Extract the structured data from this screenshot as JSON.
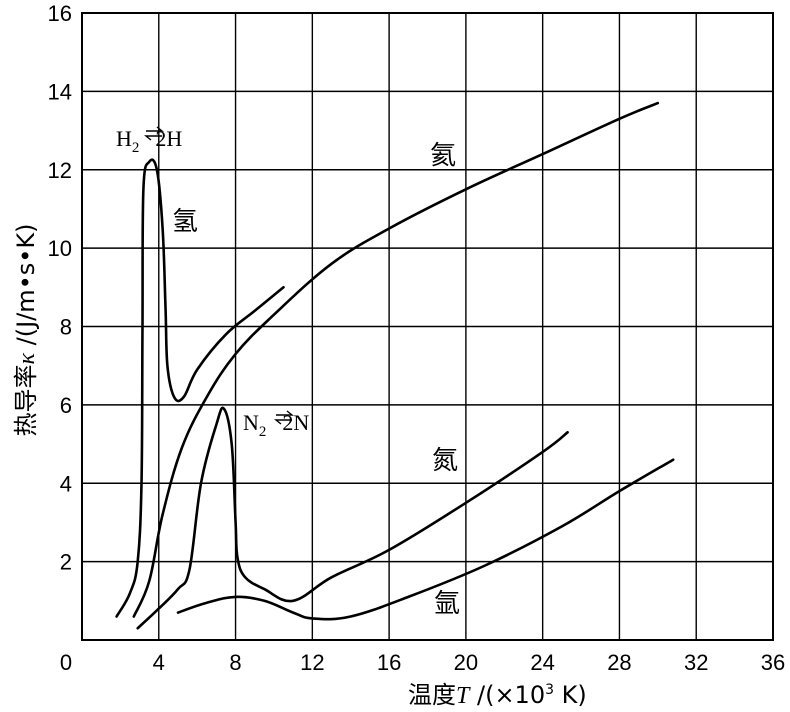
{
  "chart_data": {
    "type": "line",
    "xlabel_prefix": "温度",
    "xlabel_var": "T",
    "xlabel_unit_start": " /(×10",
    "xlabel_unit_exp": "3",
    "xlabel_unit_end": " K)",
    "ylabel_prefix": "热导率",
    "ylabel_var": "κ",
    "ylabel_unit": " /(J/m•s•K)",
    "xlim": [
      0,
      36
    ],
    "ylim": [
      0,
      16
    ],
    "x_ticks": [
      "0",
      "4",
      "8",
      "12",
      "16",
      "20",
      "24",
      "28",
      "32",
      "36"
    ],
    "y_ticks": [
      "2",
      "4",
      "6",
      "8",
      "10",
      "12",
      "14",
      "16"
    ],
    "grid": true,
    "series": [
      {
        "name": "氢",
        "points": [
          [
            1.8,
            0.6
          ],
          [
            2.5,
            1.2
          ],
          [
            2.9,
            2.0
          ],
          [
            3.1,
            4.0
          ],
          [
            3.15,
            8.0
          ],
          [
            3.2,
            11.5
          ],
          [
            3.5,
            12.2
          ],
          [
            3.9,
            12.0
          ],
          [
            4.2,
            10.5
          ],
          [
            4.35,
            8.5
          ],
          [
            4.45,
            7.0
          ],
          [
            4.8,
            6.2
          ],
          [
            5.3,
            6.2
          ],
          [
            6.0,
            6.9
          ],
          [
            7.5,
            7.8
          ],
          [
            9.0,
            8.4
          ],
          [
            10.5,
            9.0
          ]
        ]
      },
      {
        "name": "氦",
        "points": [
          [
            2.7,
            0.6
          ],
          [
            3.5,
            1.5
          ],
          [
            4.2,
            3.2
          ],
          [
            5.2,
            4.9
          ],
          [
            6.5,
            6.2
          ],
          [
            8.0,
            7.3
          ],
          [
            10.0,
            8.3
          ],
          [
            13.0,
            9.6
          ],
          [
            16.0,
            10.5
          ],
          [
            20.0,
            11.5
          ],
          [
            24.0,
            12.4
          ],
          [
            28.0,
            13.3
          ],
          [
            30.0,
            13.7
          ]
        ]
      },
      {
        "name": "氮",
        "points": [
          [
            2.9,
            0.3
          ],
          [
            4.0,
            0.8
          ],
          [
            5.0,
            1.3
          ],
          [
            5.6,
            1.8
          ],
          [
            6.2,
            4.0
          ],
          [
            7.0,
            5.5
          ],
          [
            7.4,
            5.9
          ],
          [
            7.8,
            5.0
          ],
          [
            8.0,
            3.0
          ],
          [
            8.1,
            2.1
          ],
          [
            8.5,
            1.6
          ],
          [
            9.5,
            1.3
          ],
          [
            11.0,
            1.0
          ],
          [
            13.0,
            1.6
          ],
          [
            16.0,
            2.3
          ],
          [
            20.0,
            3.5
          ],
          [
            24.0,
            4.8
          ],
          [
            25.3,
            5.3
          ]
        ]
      },
      {
        "name": "氩",
        "points": [
          [
            5.0,
            0.7
          ],
          [
            6.5,
            0.95
          ],
          [
            8.0,
            1.1
          ],
          [
            9.5,
            1.0
          ],
          [
            11.0,
            0.7
          ],
          [
            12.0,
            0.55
          ],
          [
            14.0,
            0.6
          ],
          [
            17.0,
            1.1
          ],
          [
            21.0,
            1.9
          ],
          [
            25.0,
            2.9
          ],
          [
            28.0,
            3.8
          ],
          [
            30.8,
            4.6
          ]
        ]
      }
    ],
    "annotations": {
      "h2_dissociation": [
        "H",
        "2",
        "2H"
      ],
      "n2_dissociation": [
        "N",
        "2",
        "2N"
      ],
      "label_hydrogen": "氢",
      "label_helium": "氦",
      "label_nitrogen": "氮",
      "label_argon": "氩"
    }
  }
}
